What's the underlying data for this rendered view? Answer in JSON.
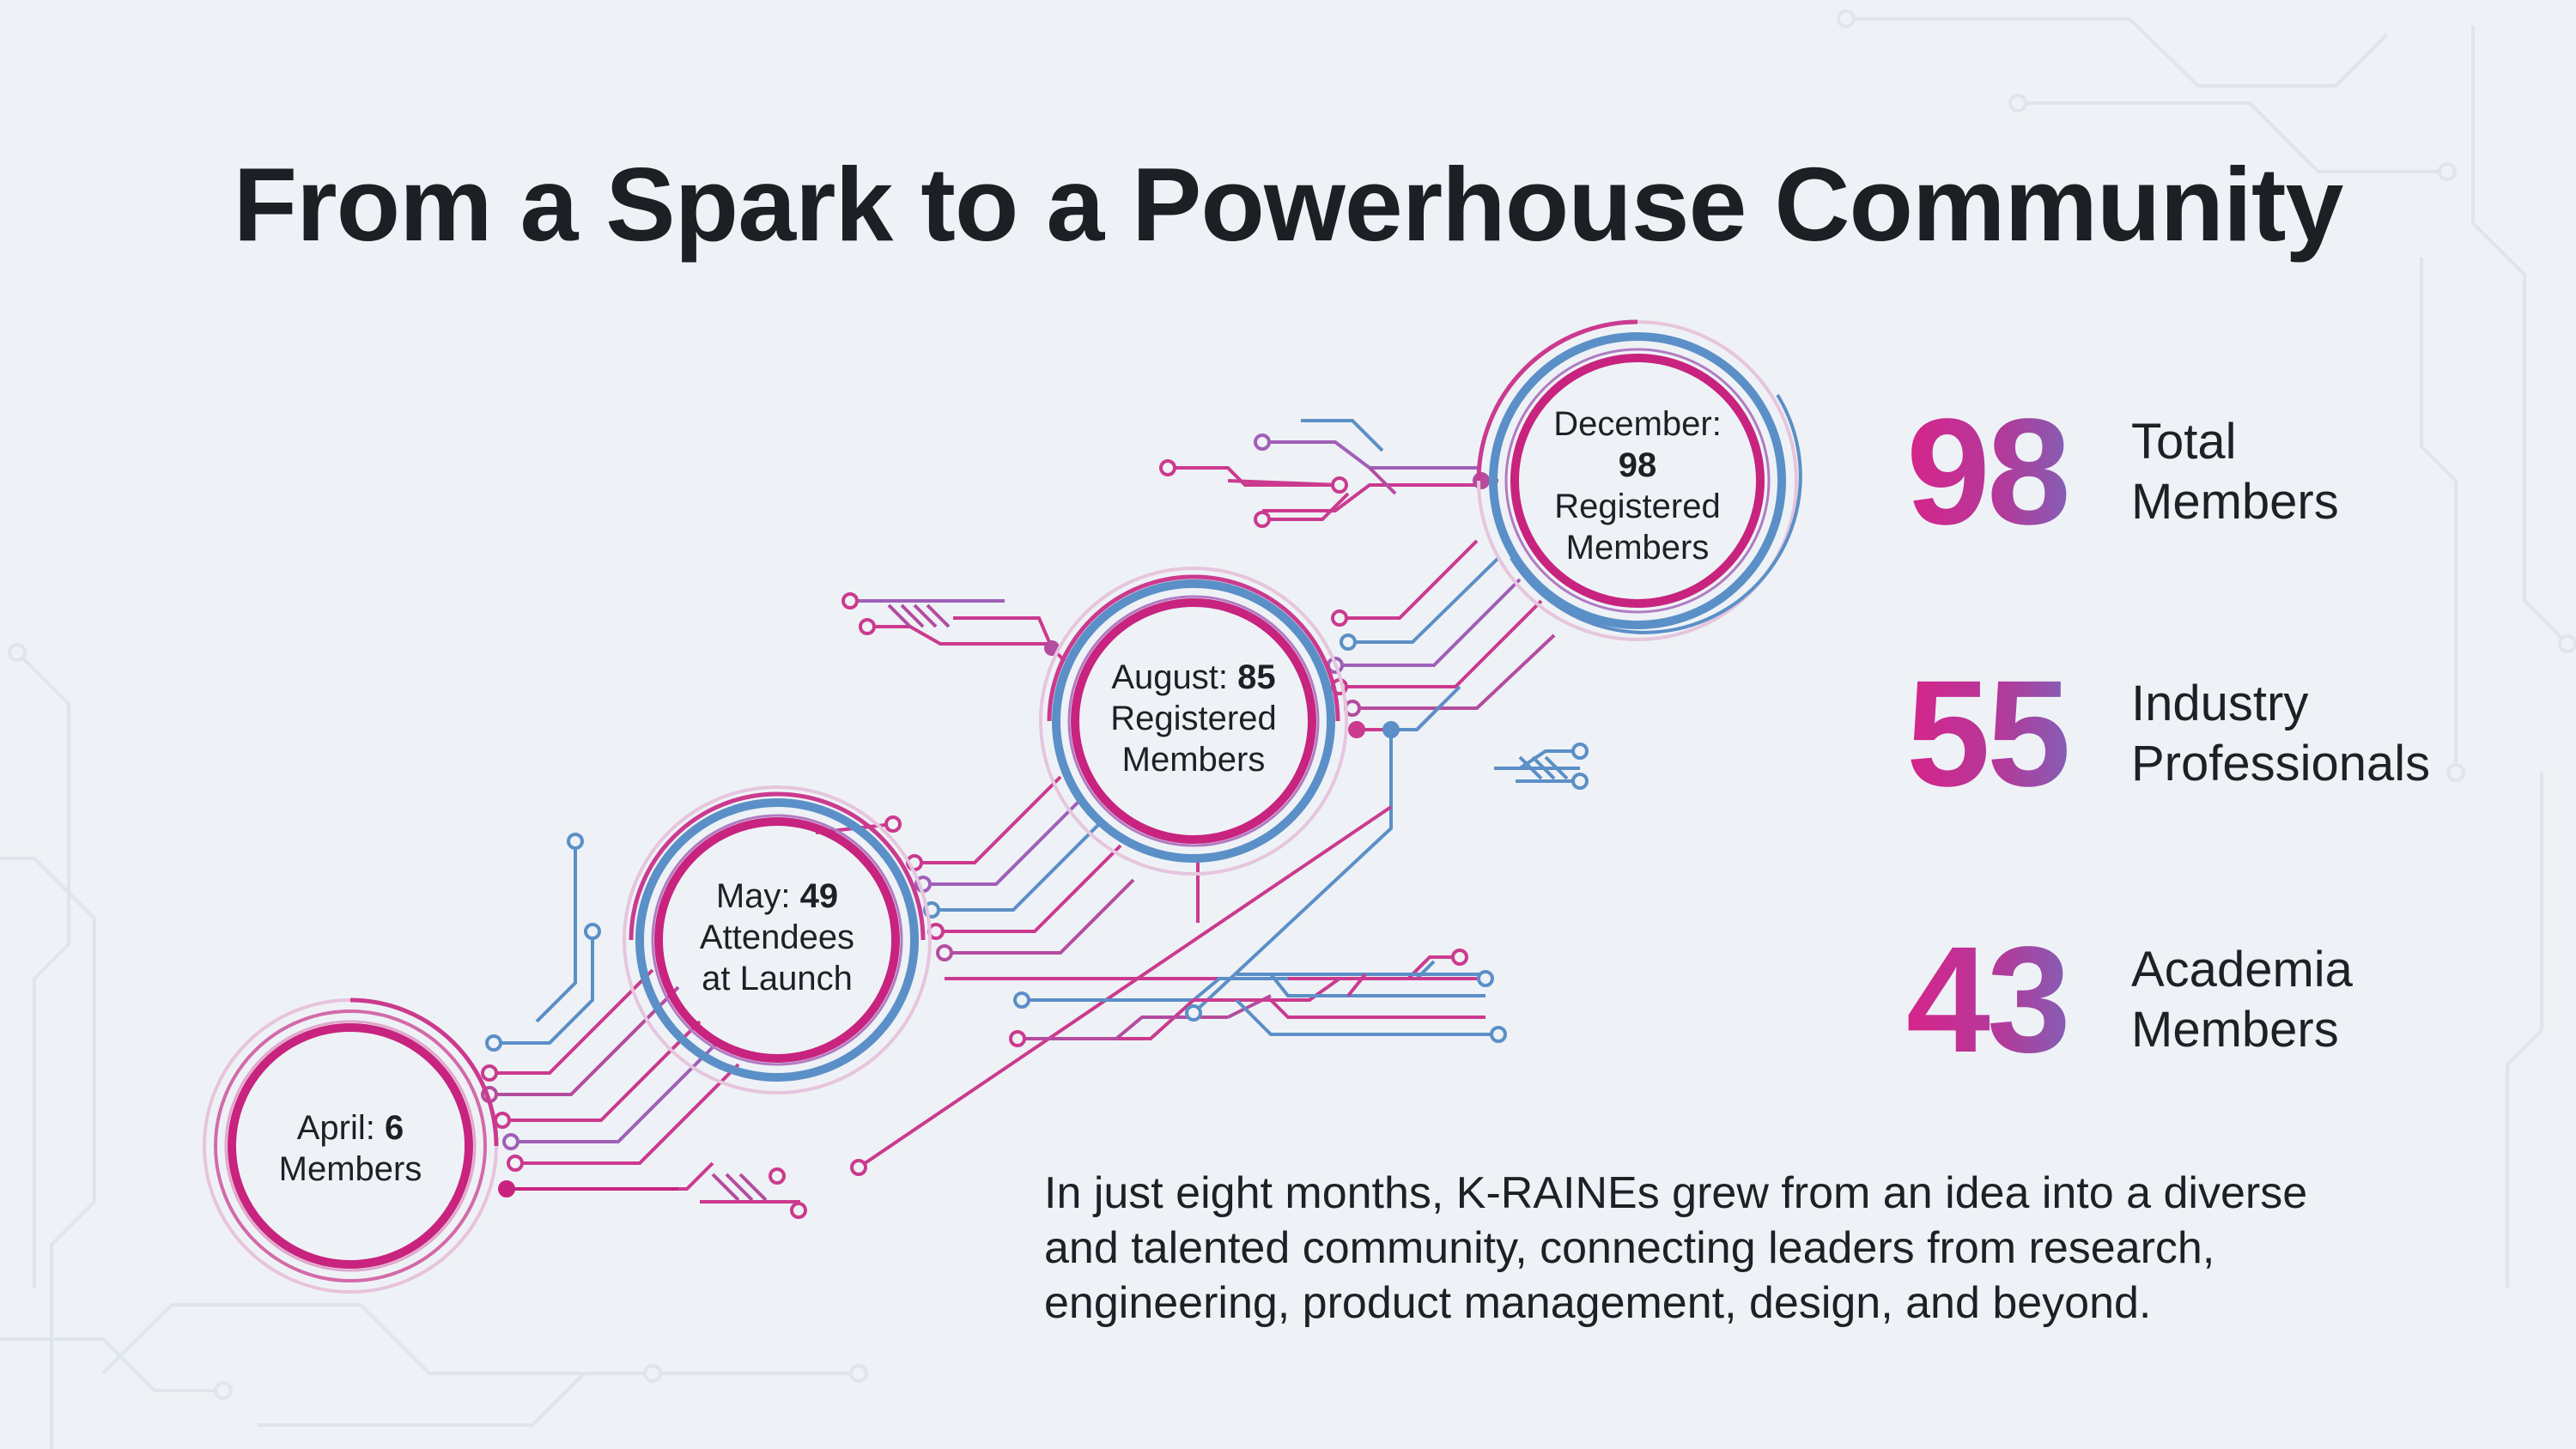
{
  "title": "From a Spark to a Powerhouse Community",
  "milestones": [
    {
      "month": "April:",
      "value": "6",
      "lines": [
        "Members"
      ]
    },
    {
      "month": "May:",
      "value": "49",
      "lines": [
        "Attendees",
        "at Launch"
      ]
    },
    {
      "month": "August:",
      "value": "85",
      "lines": [
        "Registered",
        "Members"
      ]
    },
    {
      "month": "December:",
      "value": "98",
      "lines": [
        "Registered",
        "Members"
      ]
    }
  ],
  "stats": [
    {
      "value": "98",
      "label_line1": "Total",
      "label_line2": "Members"
    },
    {
      "value": "55",
      "label_line1": "Industry",
      "label_line2": "Professionals"
    },
    {
      "value": "43",
      "label_line1": "Academia",
      "label_line2": "Members"
    }
  ],
  "summary_lines": [
    "In just eight months, K-RAINEs grew from an idea into a diverse",
    "and talented community, connecting leaders from research,",
    "engineering, product management, design, and beyond."
  ],
  "colors": {
    "magenta": "#c8237f",
    "blue": "#5b8fc7",
    "lavender": "#a678c2",
    "background": "#eef2f6"
  }
}
